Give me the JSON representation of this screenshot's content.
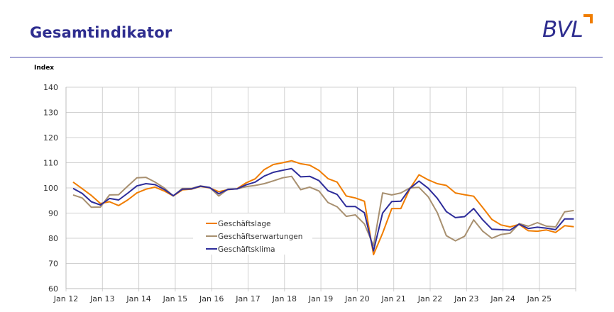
{
  "header": {
    "title": "Gesamtindikator",
    "logo_text": "BVL",
    "logo_colors": {
      "text": "#2e2d8f",
      "mark": "#f07d00"
    }
  },
  "chart_data": {
    "type": "line",
    "title": "Gesamtindikator",
    "ylabel": "Index",
    "xlabel": "",
    "ylim": [
      60,
      140
    ],
    "yticks": [
      60,
      70,
      80,
      90,
      100,
      110,
      120,
      130,
      140
    ],
    "xtick_labels": [
      "Jan 12",
      "Jan 13",
      "Jan 14",
      "Jan 15",
      "Jan 16",
      "Jan 17",
      "Jan 18",
      "Jan 19",
      "Jan 20",
      "Jan 21",
      "Jan 22",
      "Jan 23",
      "Jan 24",
      "Jan 25"
    ],
    "grid": true,
    "legend_position": "inside-center-left",
    "x": [
      "2012Q1",
      "2012Q2",
      "2012Q3",
      "2012Q4",
      "2013Q1",
      "2013Q2",
      "2013Q3",
      "2013Q4",
      "2014Q1",
      "2014Q2",
      "2014Q3",
      "2014Q4",
      "2015Q1",
      "2015Q2",
      "2015Q3",
      "2015Q4",
      "2016Q1",
      "2016Q2",
      "2016Q3",
      "2016Q4",
      "2017Q1",
      "2017Q2",
      "2017Q3",
      "2017Q4",
      "2018Q1",
      "2018Q2",
      "2018Q3",
      "2018Q4",
      "2019Q1",
      "2019Q2",
      "2019Q3",
      "2019Q4",
      "2020Q1",
      "2020Q2",
      "2020Q3",
      "2020Q4",
      "2021Q1",
      "2021Q2",
      "2021Q3",
      "2021Q4",
      "2022Q1",
      "2022Q2",
      "2022Q3",
      "2022Q4",
      "2023Q1",
      "2023Q2",
      "2023Q3",
      "2023Q4",
      "2024Q1",
      "2024Q2",
      "2024Q3",
      "2024Q4",
      "2025Q1",
      "2025Q2",
      "2025Q3",
      "2025Q4"
    ],
    "series": [
      {
        "name": "Geschäftslage",
        "color": "#f07d00",
        "values": [
          102.3,
          99.7,
          97.0,
          93.8,
          94.5,
          93.0,
          95.2,
          98.0,
          99.5,
          100.3,
          98.8,
          96.8,
          99.2,
          99.5,
          100.6,
          100.0,
          98.5,
          99.3,
          99.7,
          102.0,
          103.6,
          107.3,
          109.3,
          110.0,
          110.8,
          109.6,
          109.0,
          107.0,
          103.7,
          102.3,
          96.8,
          96.0,
          94.7,
          73.5,
          82.0,
          91.8,
          91.8,
          99.7,
          105.2,
          103.2,
          101.7,
          101.0,
          98.0,
          97.3,
          96.7,
          92.2,
          87.5,
          85.3,
          84.5,
          85.5,
          83.0,
          82.8,
          83.3,
          82.3,
          85.0,
          84.6
        ]
      },
      {
        "name": "Geschäftserwartungen",
        "color": "#a89070",
        "values": [
          97.2,
          96.0,
          92.3,
          92.4,
          97.2,
          97.3,
          100.7,
          104.0,
          104.2,
          102.3,
          100.0,
          96.8,
          99.8,
          99.8,
          100.8,
          100.2,
          96.8,
          99.5,
          99.6,
          100.5,
          101.0,
          101.7,
          102.8,
          104.0,
          104.6,
          99.3,
          100.3,
          98.8,
          94.2,
          92.5,
          88.7,
          89.3,
          85.7,
          77.0,
          98.0,
          97.2,
          98.0,
          100.0,
          100.2,
          96.5,
          90.2,
          81.0,
          79.0,
          80.8,
          87.3,
          82.8,
          80.0,
          81.5,
          82.0,
          85.8,
          84.8,
          86.2,
          84.8,
          84.5,
          90.5,
          91.0
        ]
      },
      {
        "name": "Geschäftsklima",
        "color": "#2e2d9a",
        "values": [
          99.8,
          97.8,
          94.5,
          93.2,
          95.8,
          95.2,
          97.9,
          100.8,
          101.7,
          101.3,
          99.4,
          96.9,
          99.5,
          99.6,
          100.7,
          100.1,
          97.7,
          99.4,
          99.6,
          101.2,
          102.3,
          104.7,
          106.2,
          107.0,
          107.7,
          104.4,
          104.6,
          102.9,
          98.9,
          97.4,
          92.6,
          92.6,
          90.1,
          75.0,
          90.0,
          94.6,
          94.7,
          99.8,
          102.7,
          99.9,
          95.9,
          90.6,
          88.2,
          88.6,
          91.8,
          87.3,
          83.6,
          83.4,
          83.2,
          85.6,
          83.9,
          84.4,
          84.0,
          83.4,
          87.7,
          87.7
        ]
      }
    ]
  }
}
